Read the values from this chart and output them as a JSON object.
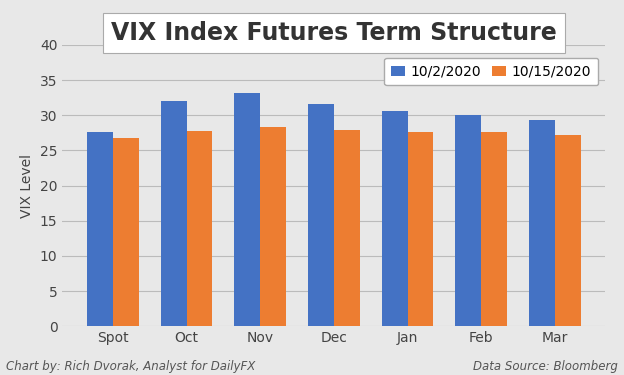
{
  "title": "VIX Index Futures Term Structure",
  "categories": [
    "Spot",
    "Oct",
    "Nov",
    "Dec",
    "Jan",
    "Feb",
    "Mar"
  ],
  "series1_label": "10/2/2020",
  "series2_label": "10/15/2020",
  "series1_values": [
    27.6,
    32.0,
    33.2,
    31.6,
    30.6,
    30.1,
    29.4
  ],
  "series2_values": [
    26.8,
    27.8,
    28.4,
    27.9,
    27.6,
    27.6,
    27.2
  ],
  "series1_color": "#4472C4",
  "series2_color": "#ED7D31",
  "ylabel": "VIX Level",
  "ylim": [
    0,
    40
  ],
  "yticks": [
    0,
    5,
    10,
    15,
    20,
    25,
    30,
    35,
    40
  ],
  "background_color": "#E8E8E8",
  "plot_bg_color": "#E8E8E8",
  "grid_color": "#BBBBBB",
  "footer_left": "Chart by: Rich Dvorak, Analyst for DailyFX",
  "footer_right": "Data Source: Bloomberg",
  "title_fontsize": 17,
  "legend_fontsize": 10,
  "axis_fontsize": 10,
  "footer_fontsize": 8.5,
  "bar_width": 0.35
}
